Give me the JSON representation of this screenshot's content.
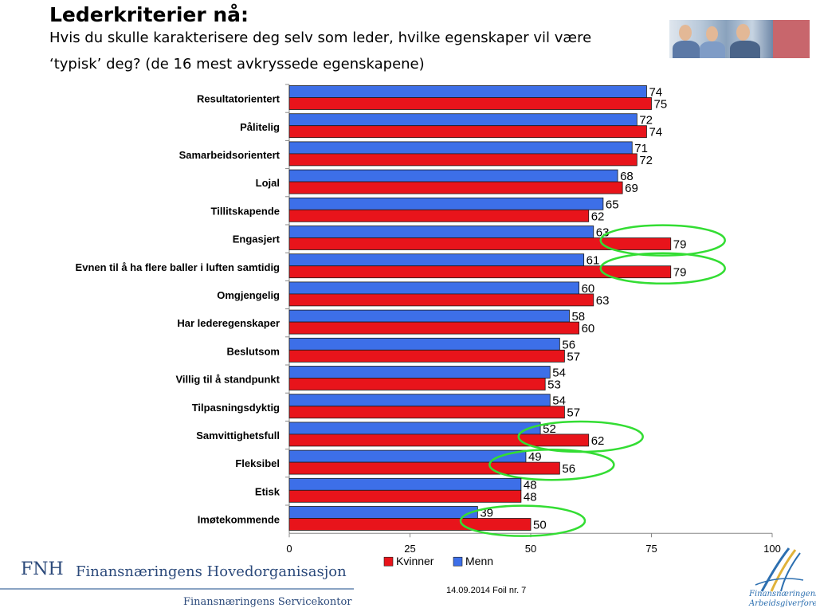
{
  "header": {
    "title": "Lederkriterier nå:",
    "subtitle_line1": "Hvis du skulle karakterisere deg selv som leder, hvilke egenskaper vil være",
    "subtitle_line2": "‘typisk’ deg?  (de 16 mest avkryssede egenskapene)"
  },
  "chart_data": {
    "type": "bar",
    "orientation": "horizontal",
    "categories": [
      "Resultatorientert",
      "Pålitelig",
      "Samarbeidsorientert",
      "Lojal",
      "Tillitskapende",
      "Engasjert",
      "Evnen til å ha flere baller i luften samtidig",
      "Omgjengelig",
      "Har lederegenskaper",
      "Beslutsom",
      "Villig til å standpunkt",
      "Tilpasningsdyktig",
      "Samvittighetsfull",
      "Fleksibel",
      "Etisk",
      "Imøtekommende"
    ],
    "series": [
      {
        "name": "Menn",
        "color": "#3d6fe8",
        "values": [
          74,
          72,
          71,
          68,
          65,
          63,
          61,
          60,
          58,
          56,
          54,
          54,
          52,
          49,
          48,
          39
        ]
      },
      {
        "name": "Kvinner",
        "color": "#e8141b",
        "values": [
          75,
          74,
          72,
          69,
          62,
          79,
          79,
          63,
          60,
          57,
          53,
          57,
          62,
          56,
          48,
          50
        ]
      }
    ],
    "xlim": [
      0,
      100
    ],
    "xticks": [
      0,
      25,
      50,
      75,
      100
    ],
    "legend_order": [
      "Kvinner",
      "Menn"
    ],
    "legend_position": "bottom",
    "highlighted_categories": [
      "Engasjert",
      "Evnen til å ha flere baller i luften samtidig",
      "Samvittighetsfull",
      "Fleksibel",
      "Imøtekommende"
    ],
    "highlight_color": "#33dd33"
  },
  "footer": {
    "logo_abbr": "FNH",
    "org_name": "Finansnæringens Hovedorganisasjon",
    "service_office": "Finansnæringens Servicekontor",
    "date_slide": "14.09.2014 Foil nr. 7",
    "fa_logo_line1": "Finansnæringens",
    "fa_logo_line2": "Arbeidsgiverforening"
  }
}
